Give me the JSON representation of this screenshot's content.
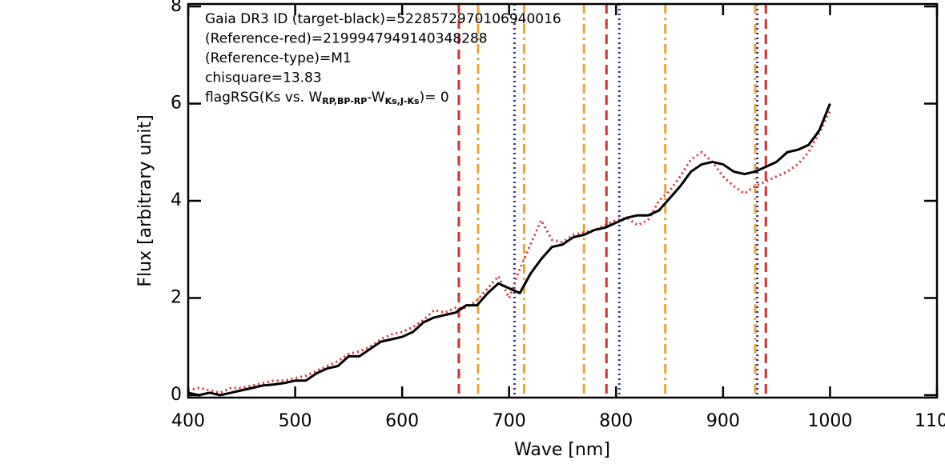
{
  "chart_data": {
    "type": "line",
    "x_label": "Wave [nm]",
    "y_label": "Flux [arbitrary unit]",
    "xlim": [
      400,
      1100
    ],
    "ylim": [
      -0.05,
      8.05
    ],
    "xticks": [
      400,
      500,
      600,
      700,
      800,
      900,
      1000,
      1100
    ],
    "yticks": [
      0,
      2,
      4,
      6,
      8
    ],
    "annotations": [
      "Gaia DR3 ID (target-black)=5228572970106940016",
      "(Reference-red)=2199947949140348288",
      "(Reference-type)=M1",
      "chisquare=13.83"
    ],
    "flag_label": {
      "prefix": "flagRSG(Ks vs. W",
      "sub1": "RP,BP-RP",
      "mid": "-W",
      "sub2": "Ks,J-Ks",
      "suffix": ")= 0"
    },
    "x": [
      400,
      410,
      420,
      430,
      440,
      450,
      460,
      470,
      480,
      490,
      500,
      510,
      520,
      530,
      540,
      550,
      560,
      570,
      580,
      590,
      600,
      610,
      620,
      630,
      640,
      650,
      660,
      670,
      680,
      690,
      700,
      710,
      720,
      730,
      740,
      750,
      760,
      770,
      780,
      790,
      800,
      810,
      820,
      830,
      840,
      850,
      860,
      870,
      880,
      890,
      900,
      910,
      920,
      930,
      940,
      950,
      960,
      970,
      980,
      990,
      1000
    ],
    "series": [
      {
        "color": "#000000",
        "style": "solid",
        "values": [
          0.05,
          0.0,
          0.05,
          0.0,
          0.05,
          0.1,
          0.15,
          0.2,
          0.22,
          0.25,
          0.3,
          0.3,
          0.45,
          0.55,
          0.6,
          0.8,
          0.8,
          0.95,
          1.1,
          1.15,
          1.2,
          1.3,
          1.5,
          1.6,
          1.65,
          1.7,
          1.85,
          1.85,
          2.1,
          2.3,
          2.2,
          2.1,
          2.5,
          2.8,
          3.05,
          3.1,
          3.25,
          3.3,
          3.4,
          3.45,
          3.55,
          3.65,
          3.7,
          3.7,
          3.8,
          4.05,
          4.3,
          4.6,
          4.75,
          4.8,
          4.75,
          4.6,
          4.55,
          4.6,
          4.7,
          4.8,
          5.0,
          5.05,
          5.15,
          5.45,
          6.0
        ]
      },
      {
        "color": "#d62f2f",
        "style": "dotted",
        "values": [
          0.1,
          0.15,
          0.1,
          0.05,
          0.15,
          0.15,
          0.2,
          0.25,
          0.3,
          0.3,
          0.35,
          0.4,
          0.5,
          0.6,
          0.7,
          0.85,
          0.9,
          1.0,
          1.15,
          1.25,
          1.3,
          1.4,
          1.55,
          1.75,
          1.7,
          1.8,
          1.8,
          1.95,
          2.2,
          2.45,
          2.0,
          2.6,
          3.1,
          3.6,
          3.2,
          3.15,
          3.3,
          3.35,
          3.4,
          3.5,
          3.6,
          3.65,
          3.5,
          3.6,
          4.0,
          4.2,
          4.5,
          4.85,
          5.0,
          4.8,
          4.5,
          4.3,
          4.15,
          4.3,
          4.4,
          4.5,
          4.6,
          4.75,
          5.0,
          5.4,
          5.85
        ]
      }
    ],
    "vlines": [
      {
        "x": 653,
        "color": "#d62f2f",
        "style": "dashed"
      },
      {
        "x": 671,
        "color": "#e8a530",
        "style": "dashdot"
      },
      {
        "x": 705,
        "color": "#2b2b8c",
        "style": "dotted"
      },
      {
        "x": 714,
        "color": "#e8a530",
        "style": "dashdot"
      },
      {
        "x": 770,
        "color": "#e8a530",
        "style": "dashdot"
      },
      {
        "x": 791,
        "color": "#d62f2f",
        "style": "dashed"
      },
      {
        "x": 803,
        "color": "#2b2b8c",
        "style": "dotted"
      },
      {
        "x": 846,
        "color": "#e8a530",
        "style": "dashdot"
      },
      {
        "x": 930,
        "color": "#e8a530",
        "style": "dashdot"
      },
      {
        "x": 932,
        "color": "#2b2b8c",
        "style": "dotted"
      },
      {
        "x": 940,
        "color": "#d62f2f",
        "style": "dashed"
      }
    ]
  }
}
